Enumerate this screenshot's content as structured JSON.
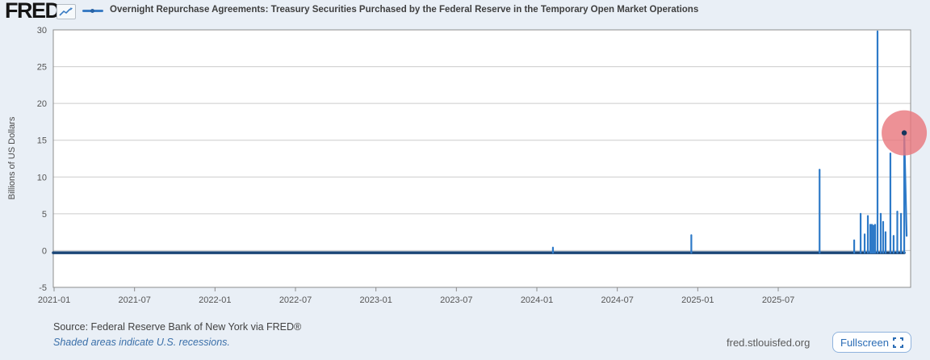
{
  "header": {
    "logo": "FRED",
    "logo_registered": "®",
    "legend_label": "Overnight Repurchase Agreements: Treasury Securities Purchased by the Federal Reserve in the Temporary Open Market Operations"
  },
  "chart_data": {
    "type": "line",
    "title": "Overnight Repurchase Agreements: Treasury Securities Purchased by the Federal Reserve in the Temporary Open Market Operations",
    "ylabel": "Billions of US Dollars",
    "ylim": [
      -5,
      30
    ],
    "xlim": [
      2020.99,
      2026.32
    ],
    "grid": "horizontal",
    "legend_position": "top",
    "y_ticks": [
      30,
      25,
      20,
      15,
      10,
      5,
      0,
      -5
    ],
    "x_ticks": [
      {
        "t": 2021.0,
        "label": "2021-01"
      },
      {
        "t": 2021.5,
        "label": "2021-07"
      },
      {
        "t": 2022.0,
        "label": "2022-01"
      },
      {
        "t": 2022.5,
        "label": "2022-07"
      },
      {
        "t": 2023.0,
        "label": "2023-01"
      },
      {
        "t": 2023.5,
        "label": "2023-07"
      },
      {
        "t": 2024.0,
        "label": "2024-01"
      },
      {
        "t": 2024.5,
        "label": "2024-07"
      },
      {
        "t": 2025.0,
        "label": "2025-01"
      },
      {
        "t": 2025.5,
        "label": "2025-07"
      }
    ],
    "baseline_value": 0,
    "baseline_render_value": -0.3,
    "spikes": [
      {
        "t": 2024.1,
        "v": 0.4
      },
      {
        "t": 2024.96,
        "v": 2.1
      },
      {
        "t": 2025.757,
        "v": 11.0
      },
      {
        "t": 2025.972,
        "v": 1.4
      },
      {
        "t": 2026.012,
        "v": 5.0
      },
      {
        "t": 2026.037,
        "v": 2.2
      },
      {
        "t": 2026.057,
        "v": 4.7
      },
      {
        "t": 2026.072,
        "v": 3.5
      },
      {
        "t": 2026.082,
        "v": 3.5
      },
      {
        "t": 2026.092,
        "v": 3.4
      },
      {
        "t": 2026.102,
        "v": 3.5
      },
      {
        "t": 2026.117,
        "v": 29.8
      },
      {
        "t": 2026.137,
        "v": 5.0
      },
      {
        "t": 2026.152,
        "v": 3.9
      },
      {
        "t": 2026.167,
        "v": 2.5
      },
      {
        "t": 2026.197,
        "v": 13.2
      },
      {
        "t": 2026.217,
        "v": 2.0
      },
      {
        "t": 2026.24,
        "v": 5.3
      },
      {
        "t": 2026.263,
        "v": 5.0
      },
      {
        "t": 2026.283,
        "v": 16.0
      }
    ],
    "peak_marker": {
      "t": 2026.283,
      "value": 16.0
    },
    "series_end": {
      "t": 2026.298,
      "value": 2.0
    },
    "annotation_circle": {
      "t": 2026.283,
      "value": 16.0,
      "radius_px": 28,
      "color": "#e8767c",
      "opacity": 0.8
    },
    "colors": {
      "spike_line": "#2e7ac8",
      "baseline_line": "#1b4677",
      "marker_dot": "#16355c",
      "gridline": "#cccccc",
      "plot_border": "#8c8c8c",
      "tick_text": "#555555",
      "plot_bg": "#ffffff"
    }
  },
  "footer": {
    "source": "Source: Federal Reserve Bank of New York via FRED®",
    "recession_note": "Shaded areas indicate U.S. recessions.",
    "site": "fred.stlouisfed.org",
    "fullscreen_label": "Fullscreen"
  }
}
